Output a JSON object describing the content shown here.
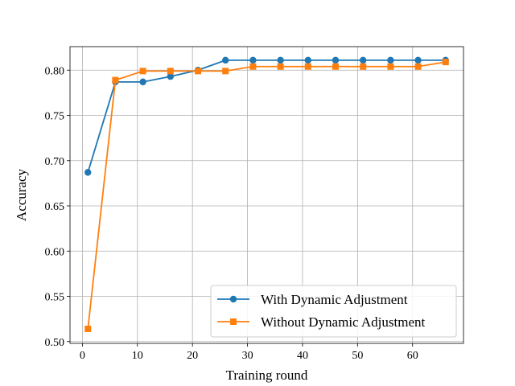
{
  "chart_data": {
    "type": "line",
    "xlabel": "Training round",
    "ylabel": "Accuracy",
    "xlim": [
      -2.25,
      69.25
    ],
    "ylim": [
      0.498,
      0.826
    ],
    "xticks": [
      0,
      10,
      20,
      30,
      40,
      50,
      60
    ],
    "yticks": [
      0.5,
      0.55,
      0.6,
      0.65,
      0.7,
      0.75,
      0.8
    ],
    "grid": true,
    "legend_position": "lower-right",
    "x": [
      1,
      6,
      11,
      16,
      21,
      26,
      31,
      36,
      41,
      46,
      51,
      56,
      61,
      66
    ],
    "series": [
      {
        "name": "With Dynamic Adjustment",
        "color": "#1f77b4",
        "marker": "circle",
        "values": [
          0.687,
          0.787,
          0.787,
          0.793,
          0.8,
          0.811,
          0.811,
          0.811,
          0.811,
          0.811,
          0.811,
          0.811,
          0.811,
          0.811
        ]
      },
      {
        "name": "Without Dynamic Adjustment",
        "color": "#ff7f0e",
        "marker": "square",
        "values": [
          0.514,
          0.789,
          0.799,
          0.799,
          0.799,
          0.799,
          0.804,
          0.804,
          0.804,
          0.804,
          0.804,
          0.804,
          0.804,
          0.809
        ]
      }
    ]
  }
}
